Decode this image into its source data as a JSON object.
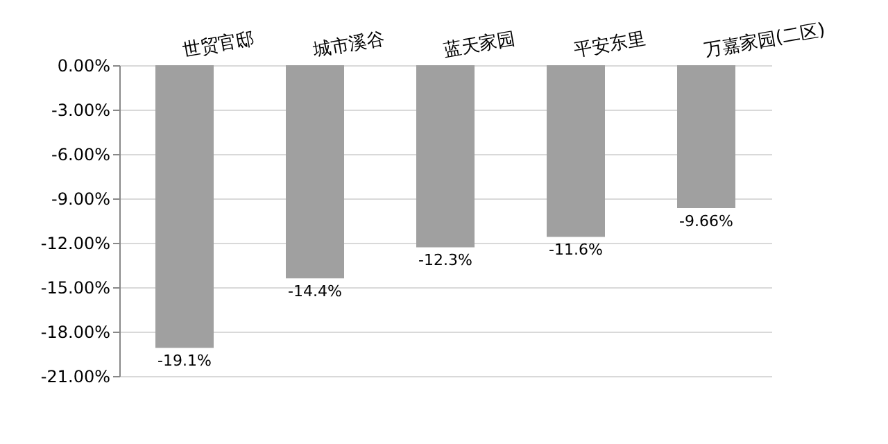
{
  "chart_data": {
    "type": "bar",
    "categories": [
      "世贸官邸",
      "城市溪谷",
      "蓝天家园",
      "平安东里",
      "万嘉家园(二区)"
    ],
    "values": [
      -19.1,
      -14.4,
      -12.3,
      -11.6,
      -9.66
    ],
    "color": "#a0a0a0",
    "value_labels": [
      "-19.1%",
      "-14.4%",
      "-12.3%",
      "-11.6%",
      "-9.66%"
    ],
    "ylim": [
      -21,
      0
    ],
    "yticks": [
      {
        "value": 0,
        "label": "0.00%"
      },
      {
        "value": -3,
        "label": "-3.00%"
      },
      {
        "value": -6,
        "label": "-6.00%"
      },
      {
        "value": -9,
        "label": "-9.00%"
      },
      {
        "value": -12,
        "label": "-12.00%"
      },
      {
        "value": -15,
        "label": "-15.00%"
      },
      {
        "value": -18,
        "label": "-18.00%"
      },
      {
        "value": -21,
        "label": "-21.00%"
      }
    ],
    "grid": "y"
  }
}
